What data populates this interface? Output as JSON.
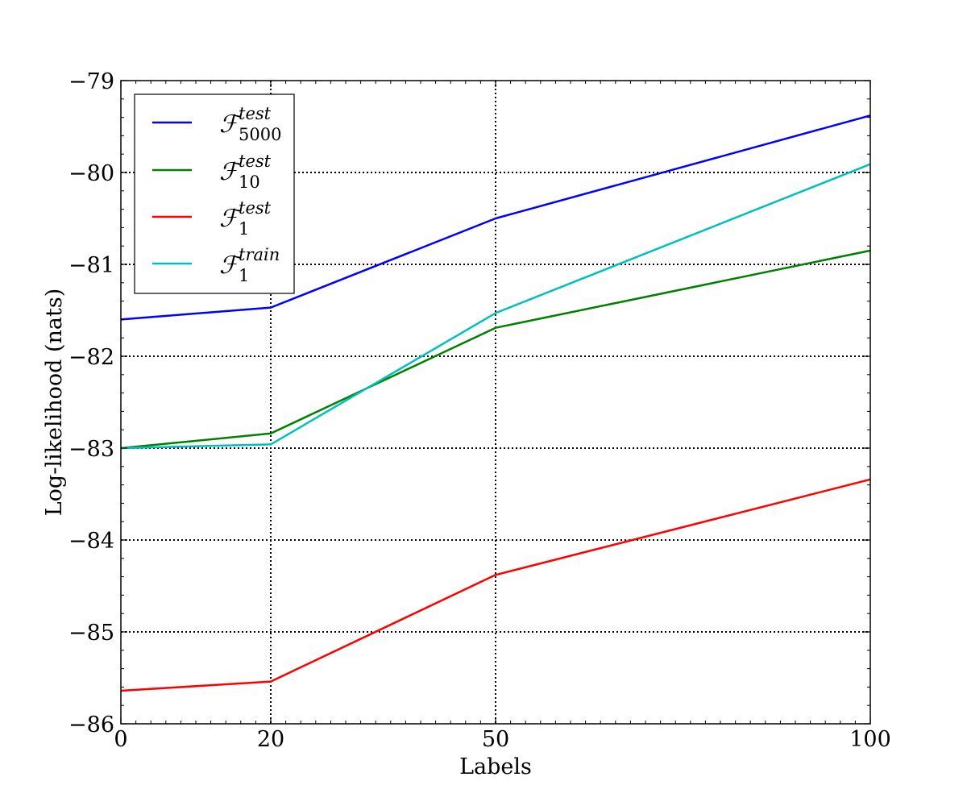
{
  "chart_data": {
    "type": "line",
    "title": "",
    "xlabel": "Labels",
    "ylabel": "Log-likelihood (nats)",
    "x": [
      0,
      20,
      50,
      100
    ],
    "xlim": [
      0,
      100
    ],
    "ylim": [
      -86,
      -79
    ],
    "xticks": [
      "0",
      "20",
      "50",
      "100"
    ],
    "yticks": [
      "−86",
      "−85",
      "−84",
      "−83",
      "−82",
      "−81",
      "−80",
      "−79"
    ],
    "grid": true,
    "grid_style": "dotted",
    "legend_position": "top-left",
    "series": [
      {
        "name": "F_5000^test",
        "label_main": "ℱ",
        "label_sub": "5000",
        "label_sup": "test",
        "color": "#0000ff",
        "values": [
          -81.6,
          -81.47,
          -80.5,
          -79.38
        ]
      },
      {
        "name": "F_10^test",
        "label_main": "ℱ",
        "label_sub": "10",
        "label_sup": "test",
        "color": "#008000",
        "values": [
          -83.0,
          -82.84,
          -81.69,
          -80.85
        ]
      },
      {
        "name": "F_1^test",
        "label_main": "ℱ",
        "label_sub": "1",
        "label_sup": "test",
        "color": "#ff0000",
        "values": [
          -85.64,
          -85.54,
          -84.38,
          -83.34
        ]
      },
      {
        "name": "F_1^train",
        "label_main": "ℱ",
        "label_sub": "1",
        "label_sup": "train",
        "color": "#00bfbf",
        "values": [
          -83.0,
          -82.96,
          -81.53,
          -79.91
        ]
      }
    ]
  }
}
